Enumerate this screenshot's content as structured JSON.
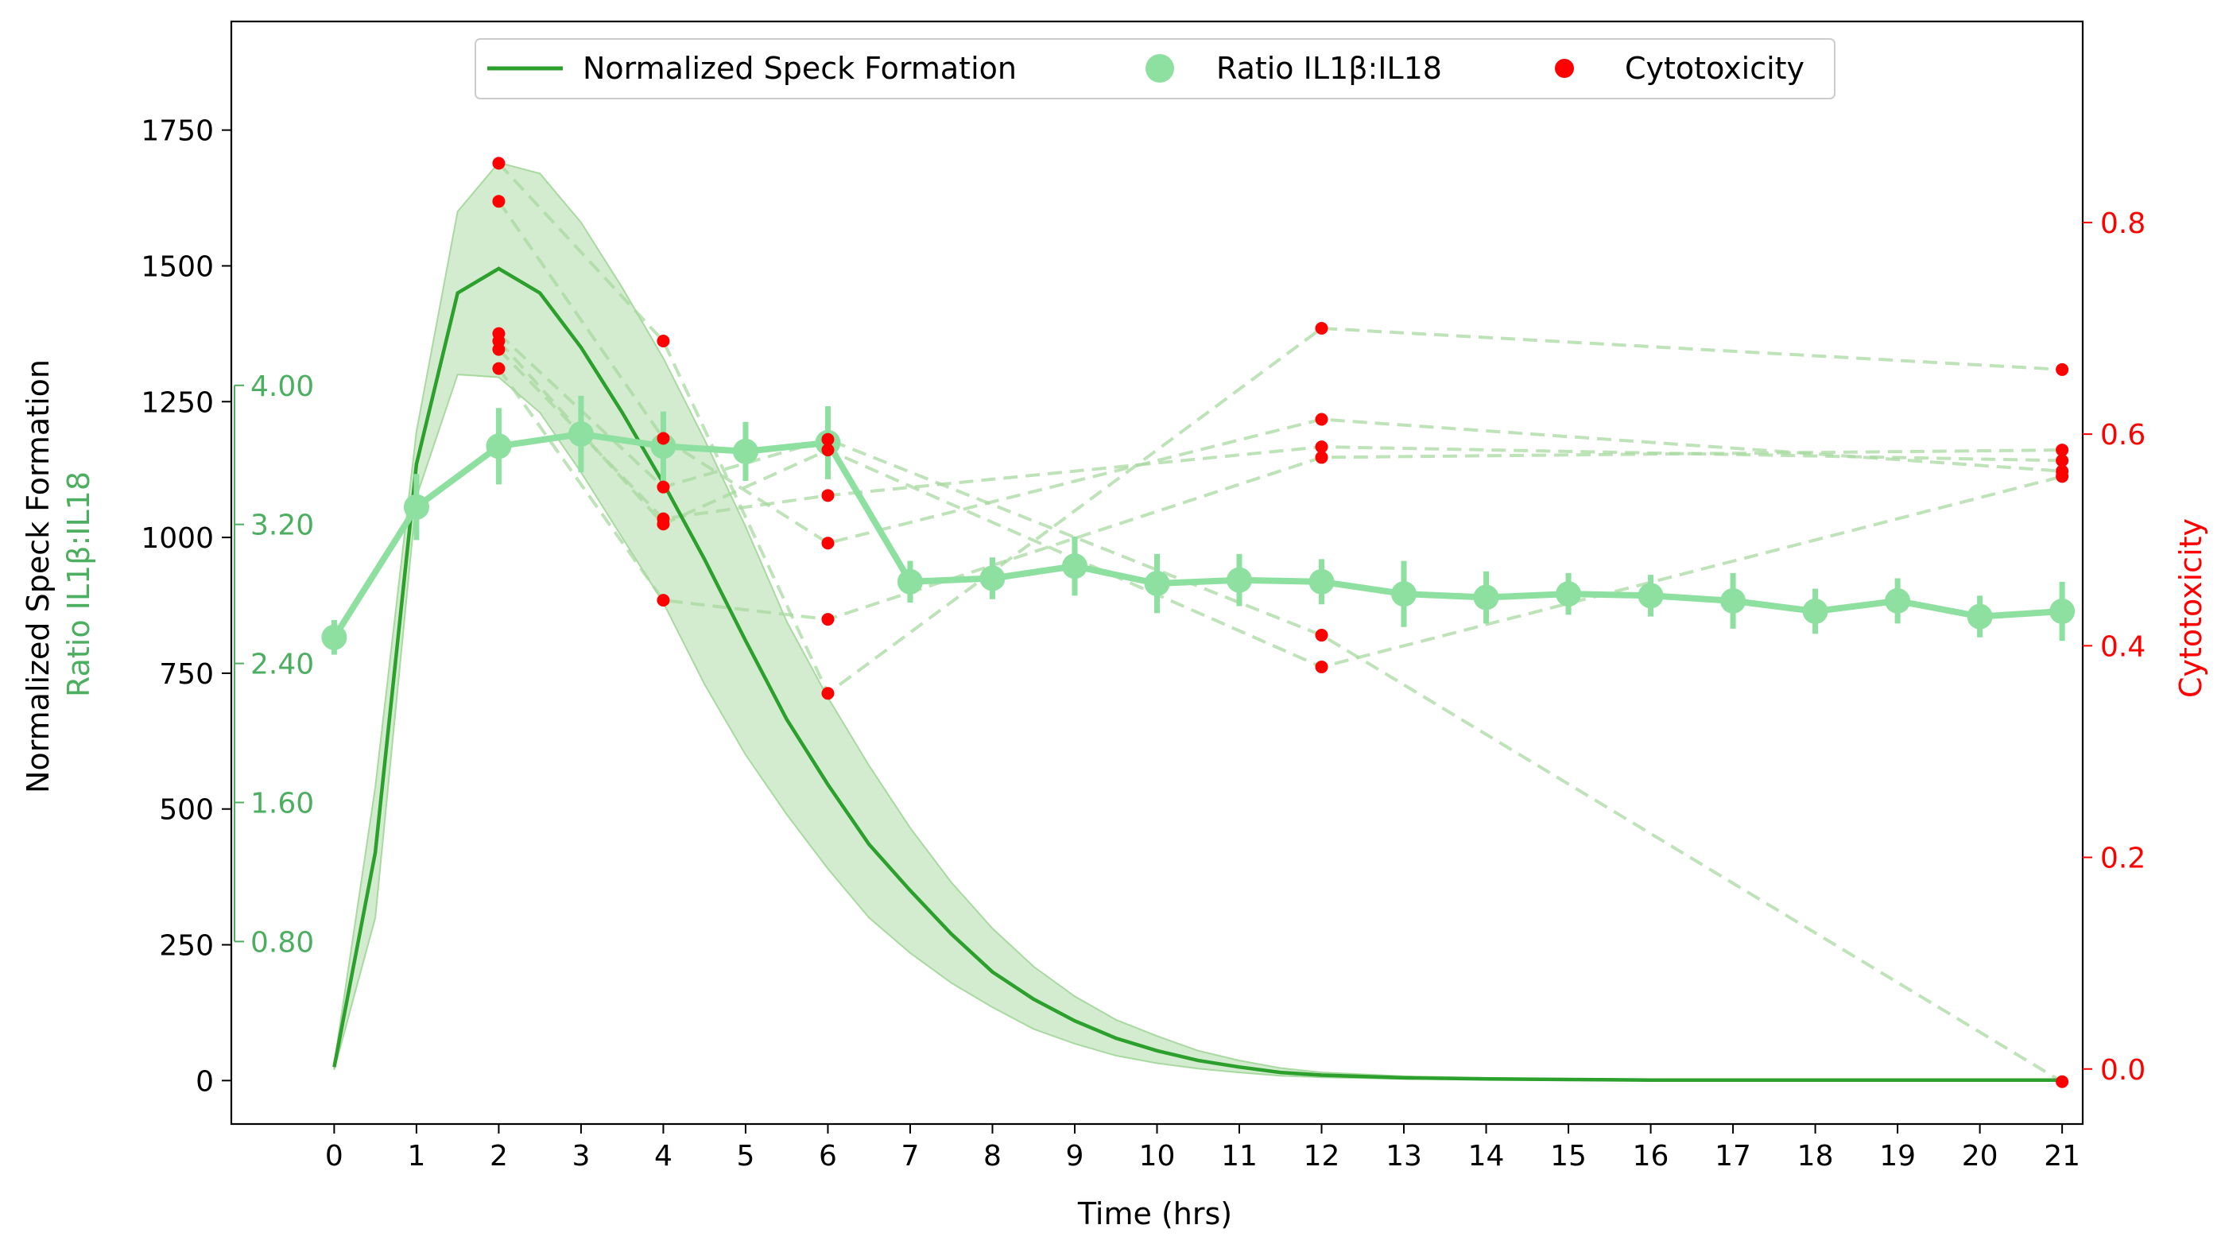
{
  "chart_data": {
    "type": "line",
    "title": "",
    "xlabel": "Time (hrs)",
    "ylabel_left": "Normalized Speck Formation",
    "ylabel_inner": "Ratio IL1β:IL18",
    "ylabel_right": "Cytotoxicity",
    "xlim": [
      -1.25,
      21.25
    ],
    "ylim_left": [
      -80,
      1950
    ],
    "ylim_right": [
      -0.052,
      0.99
    ],
    "inner_axis_scale": 0.003125,
    "x_ticks": [
      "0",
      "1",
      "2",
      "3",
      "4",
      "5",
      "6",
      "7",
      "8",
      "9",
      "10",
      "11",
      "12",
      "13",
      "14",
      "15",
      "16",
      "17",
      "18",
      "19",
      "20",
      "21"
    ],
    "y_left_ticks": [
      "0",
      "250",
      "500",
      "750",
      "1000",
      "1250",
      "1500",
      "1750"
    ],
    "y_inner_ticks": [
      "0.80",
      "1.60",
      "2.40",
      "3.20",
      "4.00"
    ],
    "y_right_ticks": [
      "0.0",
      "0.2",
      "0.4",
      "0.6",
      "0.8"
    ],
    "colors": {
      "speck": "#2ca02c",
      "band": "#a8d9a0",
      "ratio": "#8ee0a0",
      "ratio_axis": "#4caf60",
      "cytotoxicity": "#ff0000",
      "dashed": "#a8d9a0"
    },
    "legend": {
      "placement": "top-center",
      "items": [
        {
          "label": "Normalized Speck Formation",
          "marker": "line"
        },
        {
          "label": "Ratio IL1β:IL18",
          "marker": "big-dot"
        },
        {
          "label": "Cytotoxicity",
          "marker": "small-dot"
        }
      ]
    },
    "series": [
      {
        "name": "Normalized Speck Formation",
        "axis": "left",
        "x": [
          0,
          0.5,
          1,
          1.5,
          2,
          2.5,
          3,
          3.5,
          4,
          4.5,
          5,
          5.5,
          6,
          6.5,
          7,
          7.5,
          8,
          8.5,
          9,
          9.5,
          10,
          10.5,
          11,
          11.5,
          12,
          13,
          14,
          15,
          16,
          17,
          18,
          19,
          20,
          21
        ],
        "y": [
          25,
          420,
          1135,
          1450,
          1495,
          1450,
          1350,
          1230,
          1100,
          960,
          810,
          665,
          545,
          435,
          350,
          270,
          200,
          150,
          110,
          78,
          55,
          37,
          25,
          15,
          10,
          5,
          3,
          2,
          1,
          1,
          1,
          1,
          1,
          1
        ],
        "y_lower": [
          20,
          300,
          1075,
          1300,
          1295,
          1230,
          1120,
          1000,
          880,
          730,
          600,
          490,
          390,
          300,
          235,
          180,
          135,
          95,
          68,
          46,
          32,
          22,
          15,
          9,
          6,
          3,
          2,
          1,
          1,
          1,
          1,
          1,
          1,
          1
        ],
        "y_upper": [
          30,
          540,
          1195,
          1600,
          1690,
          1670,
          1580,
          1460,
          1330,
          1180,
          1020,
          845,
          705,
          580,
          465,
          365,
          280,
          210,
          155,
          112,
          82,
          55,
          37,
          23,
          15,
          8,
          5,
          3,
          2,
          2,
          2,
          2,
          2,
          2
        ]
      },
      {
        "name": "Ratio IL1β:IL18",
        "axis": "left-inner",
        "x": [
          0,
          1,
          2,
          3,
          4,
          5,
          6,
          7,
          8,
          9,
          10,
          11,
          12,
          13,
          14,
          15,
          16,
          17,
          18,
          19,
          20,
          21
        ],
        "y": [
          2.55,
          3.3,
          3.65,
          3.72,
          3.65,
          3.62,
          3.67,
          2.87,
          2.89,
          2.96,
          2.86,
          2.88,
          2.87,
          2.8,
          2.78,
          2.8,
          2.79,
          2.76,
          2.7,
          2.76,
          2.67,
          2.7
        ],
        "err": [
          0.1,
          0.19,
          0.22,
          0.22,
          0.2,
          0.17,
          0.21,
          0.12,
          0.12,
          0.17,
          0.17,
          0.15,
          0.13,
          0.19,
          0.15,
          0.12,
          0.12,
          0.16,
          0.13,
          0.13,
          0.12,
          0.17
        ]
      }
    ],
    "cytotoxicity_points": {
      "axis": "right",
      "x": [
        2,
        2,
        2,
        2,
        2,
        2,
        4,
        4,
        4,
        4,
        4,
        4,
        6,
        6,
        6,
        6,
        6,
        6,
        12,
        12,
        12,
        12,
        12,
        12,
        21,
        21,
        21,
        21,
        21,
        21
      ],
      "y": [
        0.856,
        0.82,
        0.695,
        0.688,
        0.68,
        0.662,
        0.688,
        0.596,
        0.55,
        0.52,
        0.515,
        0.443,
        0.595,
        0.585,
        0.542,
        0.497,
        0.425,
        0.355,
        0.7,
        0.614,
        0.588,
        0.578,
        0.41,
        0.38,
        0.661,
        0.585,
        0.575,
        0.565,
        0.56,
        -0.012
      ]
    },
    "trajectories": [
      {
        "x": [
          2,
          4,
          6,
          12,
          21
        ],
        "y": [
          0.856,
          0.688,
          0.355,
          0.7,
          0.661
        ]
      },
      {
        "x": [
          2,
          4,
          6,
          12,
          21
        ],
        "y": [
          0.82,
          0.596,
          0.497,
          0.614,
          0.565
        ]
      },
      {
        "x": [
          2,
          4,
          6,
          12,
          21
        ],
        "y": [
          0.695,
          0.55,
          0.595,
          0.41,
          -0.012
        ]
      },
      {
        "x": [
          2,
          4,
          6,
          12,
          21
        ],
        "y": [
          0.688,
          0.515,
          0.585,
          0.38,
          0.56
        ]
      },
      {
        "x": [
          2,
          4,
          6,
          12,
          21
        ],
        "y": [
          0.68,
          0.52,
          0.542,
          0.588,
          0.575
        ]
      },
      {
        "x": [
          2,
          4,
          6,
          12,
          21
        ],
        "y": [
          0.662,
          0.443,
          0.425,
          0.578,
          0.585
        ]
      }
    ]
  }
}
